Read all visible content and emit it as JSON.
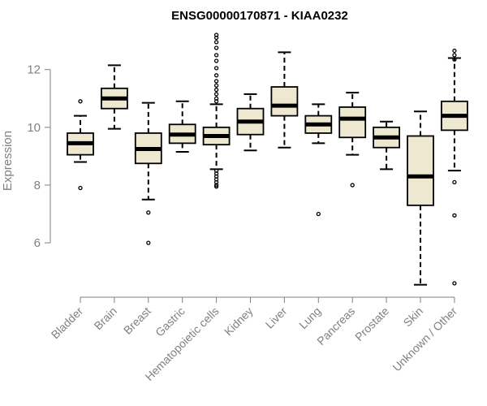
{
  "chart_data": {
    "type": "boxplot",
    "title": "ENSG00000170871 - KIAA0232",
    "xlabel": "",
    "ylabel": "Expression",
    "ylim": [
      4.4,
      13.2
    ],
    "yticks": [
      6,
      8,
      10,
      12
    ],
    "box_fill": "#efe8d0",
    "box_stroke": "#000000",
    "categories": [
      "Bladder",
      "Brain",
      "Breast",
      "Gastric",
      "Hematopoietic cells",
      "Kidney",
      "Liver",
      "Lung",
      "Pancreas",
      "Prostate",
      "Skin",
      "Unknown / Other"
    ],
    "boxes": [
      {
        "category": "Bladder",
        "whisker_low": 8.8,
        "q1": 9.05,
        "median": 9.45,
        "q3": 9.8,
        "whisker_high": 10.4,
        "outliers": [
          7.9,
          10.9
        ]
      },
      {
        "category": "Brain",
        "whisker_low": 9.95,
        "q1": 10.65,
        "median": 11.0,
        "q3": 11.35,
        "whisker_high": 12.15,
        "outliers": []
      },
      {
        "category": "Breast",
        "whisker_low": 7.5,
        "q1": 8.75,
        "median": 9.25,
        "q3": 9.8,
        "whisker_high": 10.85,
        "outliers": [
          7.05,
          6.0
        ]
      },
      {
        "category": "Gastric",
        "whisker_low": 9.15,
        "q1": 9.45,
        "median": 9.75,
        "q3": 10.1,
        "whisker_high": 10.9,
        "outliers": []
      },
      {
        "category": "Hematopoietic cells",
        "whisker_low": 8.55,
        "q1": 9.4,
        "median": 9.7,
        "q3": 10.0,
        "whisker_high": 10.8,
        "outliers": [
          13.2,
          13.1,
          12.95,
          12.75,
          12.5,
          12.3,
          12.05,
          11.8,
          11.6,
          11.45,
          11.3,
          11.15,
          11.0,
          10.9,
          8.5,
          8.4,
          8.3,
          8.2,
          8.1,
          8.0,
          7.95
        ]
      },
      {
        "category": "Kidney",
        "whisker_low": 9.2,
        "q1": 9.75,
        "median": 10.2,
        "q3": 10.65,
        "whisker_high": 11.15,
        "outliers": []
      },
      {
        "category": "Liver",
        "whisker_low": 9.3,
        "q1": 10.4,
        "median": 10.75,
        "q3": 11.4,
        "whisker_high": 12.6,
        "outliers": []
      },
      {
        "category": "Lung",
        "whisker_low": 9.45,
        "q1": 9.8,
        "median": 10.1,
        "q3": 10.4,
        "whisker_high": 10.8,
        "outliers": [
          7.0
        ]
      },
      {
        "category": "Pancreas",
        "whisker_low": 9.05,
        "q1": 9.65,
        "median": 10.3,
        "q3": 10.7,
        "whisker_high": 11.2,
        "outliers": [
          8.0
        ]
      },
      {
        "category": "Prostate",
        "whisker_low": 8.55,
        "q1": 9.3,
        "median": 9.65,
        "q3": 10.0,
        "whisker_high": 10.2,
        "outliers": []
      },
      {
        "category": "Skin",
        "whisker_low": 4.55,
        "q1": 7.3,
        "median": 8.3,
        "q3": 9.7,
        "whisker_high": 10.55,
        "outliers": []
      },
      {
        "category": "Unknown / Other",
        "whisker_low": 8.5,
        "q1": 9.9,
        "median": 10.4,
        "q3": 10.9,
        "whisker_high": 12.4,
        "outliers": [
          12.65,
          12.5,
          12.35,
          8.1,
          6.95,
          4.6
        ]
      }
    ]
  }
}
